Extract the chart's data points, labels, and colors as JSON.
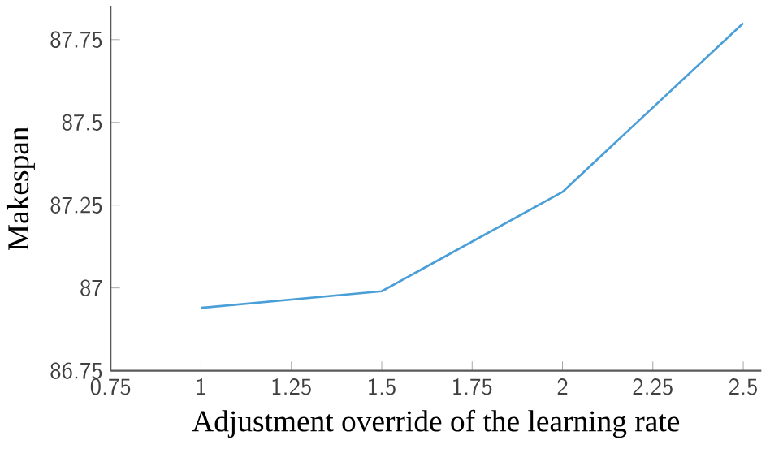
{
  "chart_data": {
    "type": "line",
    "xlabel": "Adjustment override of the learning rate",
    "ylabel": "Makespan",
    "x": [
      1,
      1.5,
      2,
      2.5
    ],
    "series": [
      {
        "color": "#4a9fd8",
        "values": [
          86.94,
          86.99,
          87.29,
          87.8
        ]
      }
    ],
    "xlim": [
      0.75,
      2.55
    ],
    "xticks": [
      0.75,
      1,
      1.25,
      1.5,
      1.75,
      2,
      2.25,
      2.5
    ],
    "ylim": [
      86.75,
      87.85
    ],
    "yticks": [
      86.75,
      87,
      87.25,
      87.5,
      87.75
    ],
    "grid": false
  }
}
